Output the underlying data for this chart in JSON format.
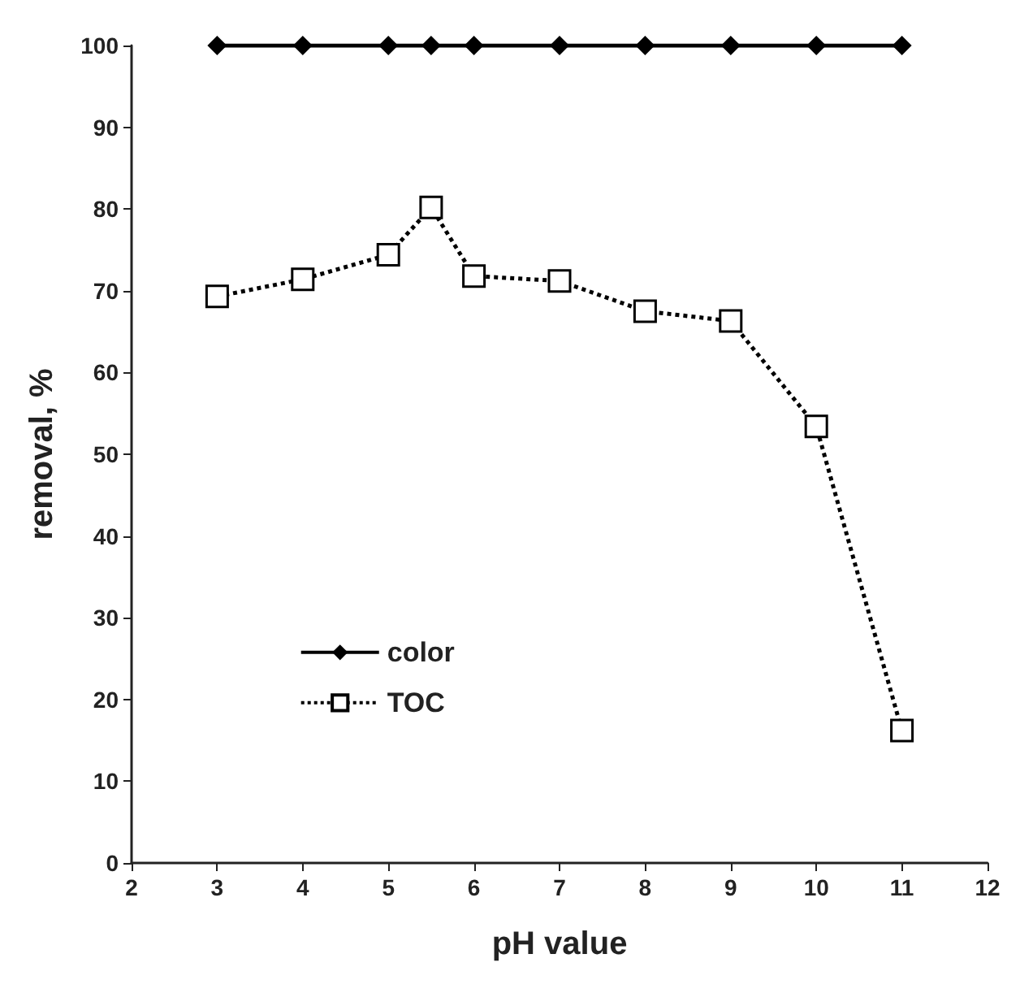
{
  "chart_data": {
    "type": "line",
    "xlabel": "pH value",
    "ylabel": "removal, %",
    "x": [
      3,
      4,
      5,
      5.5,
      6,
      7,
      8,
      9,
      10,
      11
    ],
    "series": [
      {
        "name": "color",
        "color": "#000000",
        "marker": "diamond",
        "line_style": "solid",
        "values": [
          100,
          100,
          100,
          100,
          100,
          100,
          100,
          100,
          100,
          100
        ]
      },
      {
        "name": "TOC",
        "color": "#000000",
        "marker": "square",
        "line_style": "dotted",
        "values": [
          69.3,
          71.4,
          74.4,
          80.2,
          71.8,
          71.2,
          67.5,
          66.3,
          53.4,
          16.2
        ]
      }
    ],
    "xlim": [
      2,
      12
    ],
    "xticks": [
      2,
      3,
      4,
      5,
      6,
      7,
      8,
      9,
      10,
      11,
      12
    ],
    "ylim": [
      0,
      100
    ],
    "yticks": [
      0,
      10,
      20,
      30,
      40,
      50,
      60,
      70,
      80,
      90,
      100
    ],
    "grid": false,
    "legend": "left"
  }
}
